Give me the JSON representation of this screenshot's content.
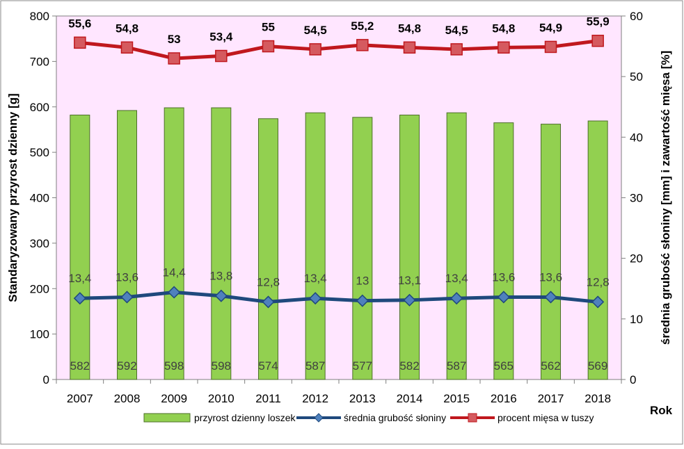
{
  "chart_data": {
    "type": "bar+line",
    "categories": [
      "2007",
      "2008",
      "2009",
      "2010",
      "2011",
      "2012",
      "2013",
      "2014",
      "2015",
      "2016",
      "2017",
      "2018"
    ],
    "series": [
      {
        "name": "przyrost dzienny loszek",
        "kind": "bar",
        "axis": "left",
        "color": "#92D050",
        "values": [
          582,
          592,
          598,
          598,
          574,
          587,
          577,
          582,
          587,
          565,
          562,
          569
        ],
        "labels": [
          "582",
          "592",
          "598",
          "598",
          "574",
          "587",
          "577",
          "582",
          "587",
          "565",
          "562",
          "569"
        ]
      },
      {
        "name": "średnia grubość słoniny",
        "kind": "line",
        "axis": "right",
        "color": "#1F497D",
        "marker_color": "#4F81BD",
        "values": [
          13.4,
          13.6,
          14.4,
          13.8,
          12.8,
          13.4,
          13.0,
          13.1,
          13.4,
          13.6,
          13.6,
          12.8
        ],
        "labels": [
          "13,4",
          "13,6",
          "14,4",
          "13,8",
          "12,8",
          "13,4",
          "13",
          "13,1",
          "13,4",
          "13,6",
          "13,6",
          "12,8"
        ]
      },
      {
        "name": "procent mięsa w tuszy",
        "kind": "line",
        "axis": "right",
        "color": "#C0181E",
        "marker_color": "#D55A5F",
        "values": [
          55.6,
          54.8,
          53.0,
          53.4,
          55.0,
          54.5,
          55.2,
          54.8,
          54.5,
          54.8,
          54.9,
          55.9
        ],
        "labels": [
          "55,6",
          "54,8",
          "53",
          "53,4",
          "55",
          "54,5",
          "55,2",
          "54,8",
          "54,5",
          "54,8",
          "54,9",
          "55,9"
        ]
      }
    ],
    "ylabel_left": "Standaryzowany przyrost dzienny [g]",
    "ylabel_right": "średnia grubość słoniny [mm] i zawartość mięsa [%]",
    "xlabel": "Rok",
    "ylim_left": [
      0,
      800
    ],
    "ylim_right": [
      0,
      60
    ],
    "yticks_left": [
      "0",
      "100",
      "200",
      "300",
      "400",
      "500",
      "600",
      "700",
      "800"
    ],
    "yticks_right": [
      "0",
      "10",
      "20",
      "30",
      "40",
      "50",
      "60"
    ],
    "plot_background": "#FFE6FF",
    "grid": false,
    "legend": "bottom"
  }
}
